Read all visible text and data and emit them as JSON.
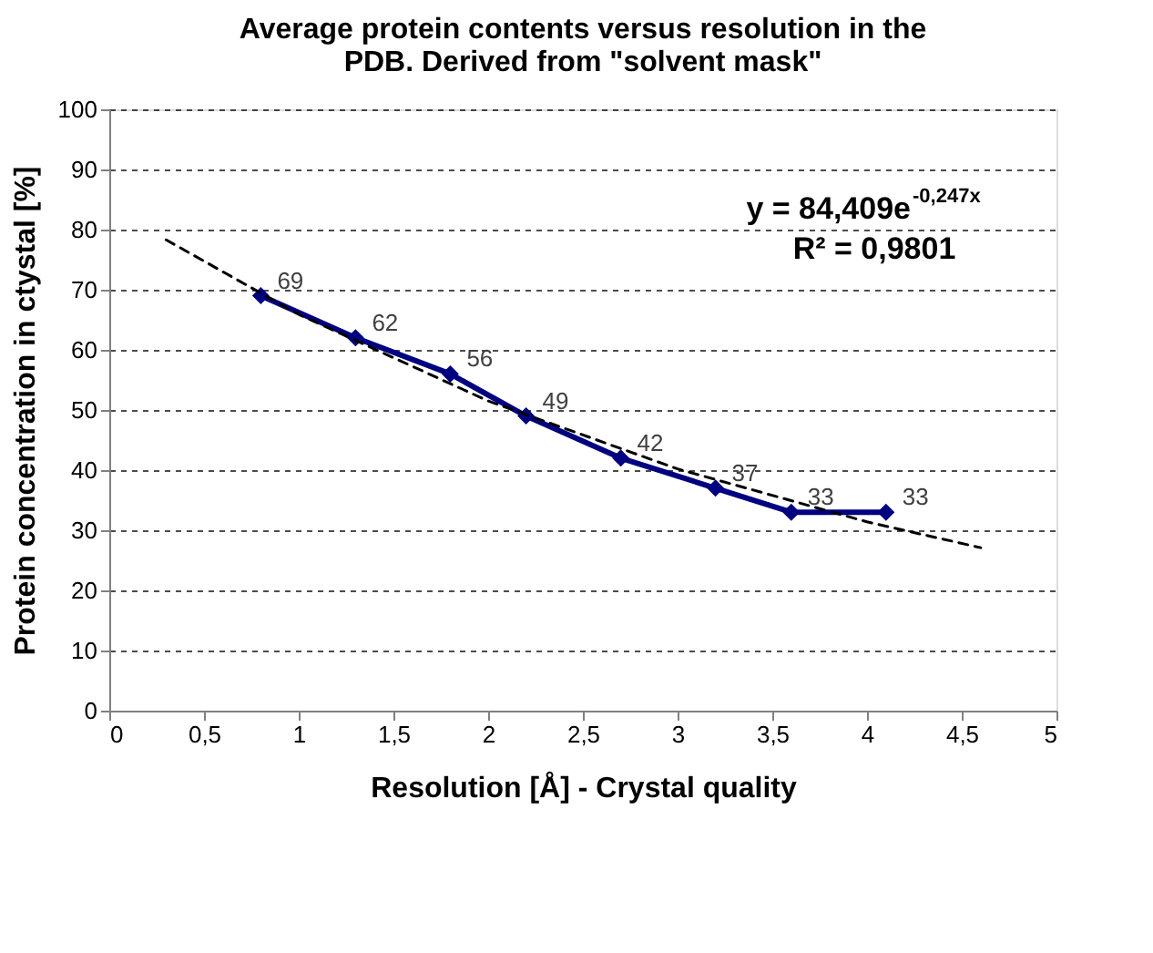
{
  "chart_data": {
    "type": "line",
    "title": "Average protein contents versus resolution in the PDB. Derived  from \"solvent mask\"",
    "xlabel": "Resolution [Å] -  Crystal quality",
    "ylabel": "Protein concentration in ctystal [%]",
    "x": [
      0.8,
      1.3,
      1.8,
      2.2,
      2.7,
      3.2,
      3.6,
      4.1
    ],
    "series": [
      {
        "color": "#000080",
        "marker": "diamond",
        "line_style": "solid",
        "values": [
          69,
          62,
          56,
          49,
          42,
          37,
          33,
          33
        ],
        "value_labels": [
          "69",
          "62",
          "56",
          "49",
          "42",
          "37",
          "33",
          "33"
        ]
      },
      {
        "color": "#000000",
        "marker": "none",
        "line_style": "dashed",
        "x": [
          0.3,
          1,
          2,
          3,
          4,
          4.6
        ],
        "values": [
          78.3,
          65.9,
          51.5,
          40.2,
          31.4,
          27.1
        ]
      }
    ],
    "xlim": [
      0,
      5
    ],
    "xticks": [
      0,
      {
        "value": 0.5,
        "label": "0,5"
      },
      1,
      {
        "value": 1.5,
        "label": "1,5"
      },
      2,
      {
        "value": 2.5,
        "label": "2,5"
      },
      3,
      {
        "value": 3.5,
        "label": "3,5"
      },
      4,
      {
        "value": 4.5,
        "label": "4,5"
      },
      5
    ],
    "ylim": [
      0,
      100
    ],
    "yticks": [
      0,
      10,
      20,
      30,
      40,
      50,
      60,
      70,
      80,
      90,
      100
    ],
    "grid": "y",
    "annotations": [
      "y = 84,409e$^{-0,247x}$",
      "R² = 0,9801"
    ]
  }
}
